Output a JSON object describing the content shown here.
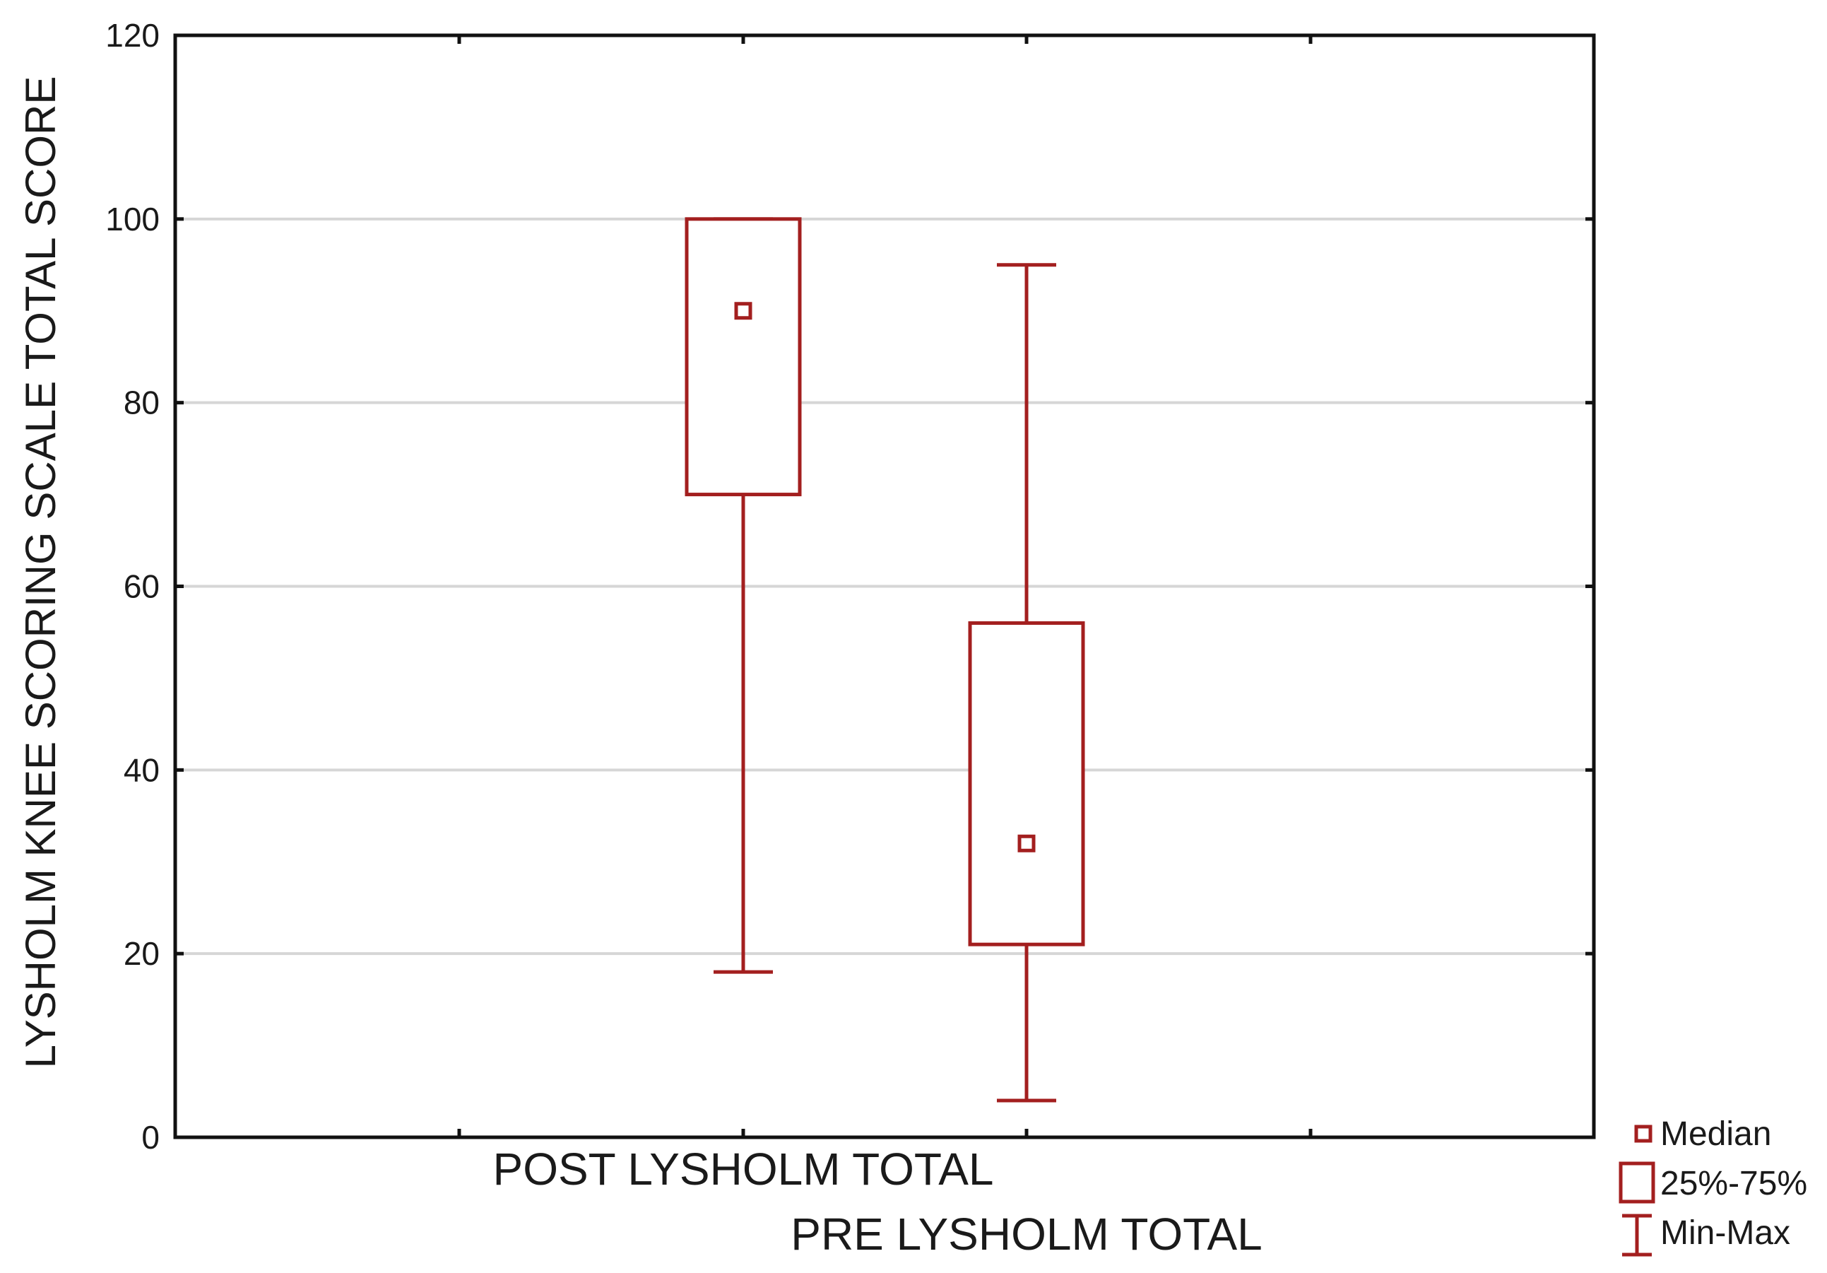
{
  "chart_data": {
    "type": "box",
    "ylabel": "LYSHOLM KNEE SCORING SCALE TOTAL SCORE",
    "xlabel": "",
    "ylim": [
      0,
      120
    ],
    "yticks": [
      0,
      20,
      40,
      60,
      80,
      100,
      120
    ],
    "grid": true,
    "legend_position": "bottom-right",
    "color": "#a31f1f",
    "categories": [
      "POST LYSHOLM TOTAL",
      "PRE LYSHOLM TOTAL"
    ],
    "boxes": [
      {
        "name": "POST LYSHOLM TOTAL",
        "min": 18,
        "q1": 70,
        "median": 90,
        "q3": 100,
        "max": 100
      },
      {
        "name": "PRE LYSHOLM TOTAL",
        "min": 4,
        "q1": 21,
        "median": 32,
        "q3": 56,
        "max": 95
      }
    ],
    "legend": [
      {
        "symbol": "median",
        "label": "Median"
      },
      {
        "symbol": "box",
        "label": "25%-75%"
      },
      {
        "symbol": "whisker",
        "label": "Min-Max"
      }
    ]
  }
}
